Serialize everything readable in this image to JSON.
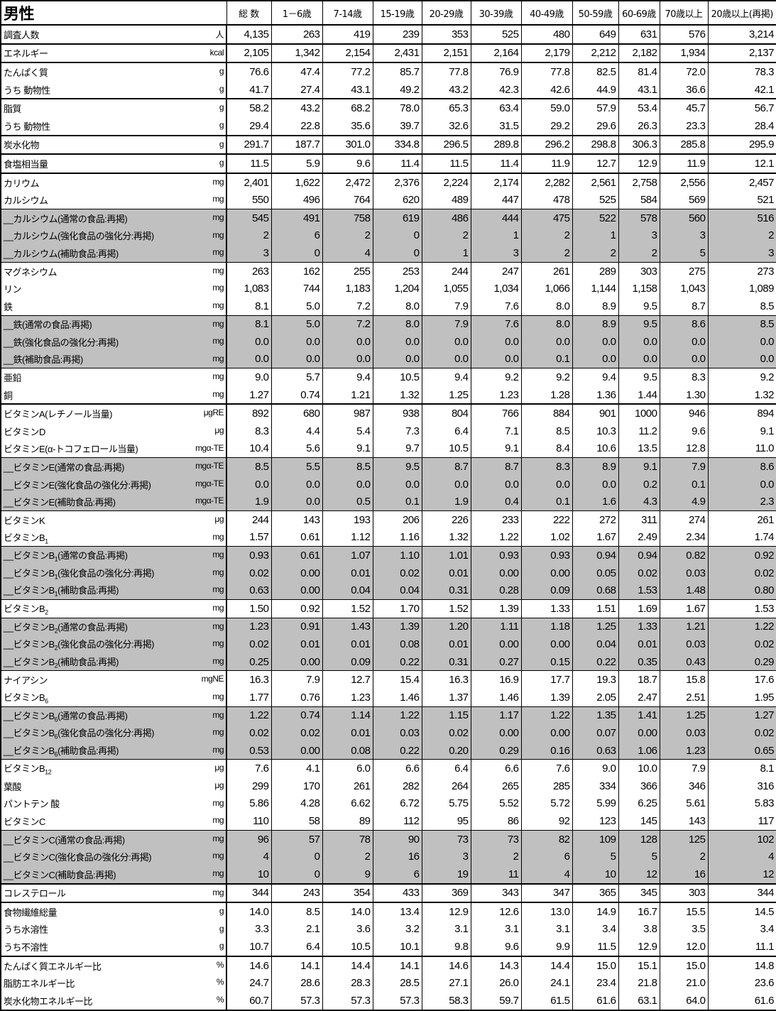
{
  "title": "男性",
  "columns": [
    "総 数",
    "1－6歳",
    "7-14歳",
    "15-19歳",
    "20-29歳",
    "30-39歳",
    "40-49歳",
    "50-59歳",
    "60-69歳",
    "70歳以上",
    "20歳以上(再掲)"
  ],
  "colors": {
    "highlight_row": "#c0c0c0"
  },
  "rows": [
    {
      "label": "調査人数",
      "unit": "人",
      "v": [
        "4,135",
        "263",
        "419",
        "239",
        "353",
        "525",
        "480",
        "649",
        "631",
        "576",
        "3,214"
      ]
    },
    {
      "label": "エネルギー",
      "unit": "kcal",
      "v": [
        "2,105",
        "1,342",
        "2,154",
        "2,431",
        "2,151",
        "2,164",
        "2,179",
        "2,212",
        "2,182",
        "1,934",
        "2,137"
      ]
    },
    {
      "label": "たんぱく質",
      "unit": "g",
      "v": [
        "76.6",
        "47.4",
        "77.2",
        "85.7",
        "77.8",
        "76.9",
        "77.8",
        "82.5",
        "81.4",
        "72.0",
        "78.3"
      ]
    },
    {
      "label": " うち 動物性",
      "unit": "g",
      "v": [
        "41.7",
        "27.4",
        "43.1",
        "49.2",
        "43.2",
        "42.3",
        "42.6",
        "44.9",
        "43.1",
        "36.6",
        "42.1"
      ]
    },
    {
      "label": "脂質",
      "unit": "g",
      "v": [
        "58.2",
        "43.2",
        "68.2",
        "78.0",
        "65.3",
        "63.4",
        "59.0",
        "57.9",
        "53.4",
        "45.7",
        "56.7"
      ]
    },
    {
      "label": " うち 動物性",
      "unit": "g",
      "v": [
        "29.4",
        "22.8",
        "35.6",
        "39.7",
        "32.6",
        "31.5",
        "29.2",
        "29.6",
        "26.3",
        "23.3",
        "28.4"
      ]
    },
    {
      "label": "炭水化物",
      "unit": "g",
      "v": [
        "291.7",
        "187.7",
        "301.0",
        "334.8",
        "296.5",
        "289.8",
        "296.2",
        "298.8",
        "306.3",
        "285.8",
        "295.9"
      ]
    },
    {
      "label": "食塩相当量",
      "unit": "g",
      "v": [
        "11.5",
        "5.9",
        "9.6",
        "11.4",
        "11.5",
        "11.4",
        "11.9",
        "12.7",
        "12.9",
        "11.9",
        "12.1"
      ]
    },
    {
      "label": "カリウム",
      "unit": "mg",
      "v": [
        "2,401",
        "1,622",
        "2,472",
        "2,376",
        "2,224",
        "2,174",
        "2,282",
        "2,561",
        "2,758",
        "2,556",
        "2,457"
      ]
    },
    {
      "label": "カルシウム",
      "unit": "mg",
      "v": [
        "550",
        "496",
        "764",
        "620",
        "489",
        "447",
        "478",
        "525",
        "584",
        "569",
        "521"
      ]
    },
    {
      "label": "__カルシウム(通常の食品:再掲)",
      "unit": "mg",
      "gray": true,
      "v": [
        "545",
        "491",
        "758",
        "619",
        "486",
        "444",
        "475",
        "522",
        "578",
        "560",
        "516"
      ]
    },
    {
      "label": "__カルシウム(強化食品の強化分:再掲)",
      "unit": "mg",
      "gray": true,
      "v": [
        "2",
        "6",
        "2",
        "0",
        "2",
        "1",
        "2",
        "1",
        "3",
        "3",
        "2"
      ]
    },
    {
      "label": "__カルシウム(補助食品:再掲)",
      "unit": "mg",
      "gray": true,
      "v": [
        "3",
        "0",
        "4",
        "0",
        "1",
        "3",
        "2",
        "2",
        "2",
        "5",
        "3"
      ]
    },
    {
      "label": "マグネシウム",
      "unit": "mg",
      "v": [
        "263",
        "162",
        "255",
        "253",
        "244",
        "247",
        "261",
        "289",
        "303",
        "275",
        "273"
      ]
    },
    {
      "label": "リン",
      "unit": "mg",
      "v": [
        "1,083",
        "744",
        "1,183",
        "1,204",
        "1,055",
        "1,034",
        "1,066",
        "1,144",
        "1,158",
        "1,043",
        "1,089"
      ]
    },
    {
      "label": "鉄",
      "unit": "mg",
      "v": [
        "8.1",
        "5.0",
        "7.2",
        "8.0",
        "7.9",
        "7.6",
        "8.0",
        "8.9",
        "9.5",
        "8.7",
        "8.5"
      ]
    },
    {
      "label": "__鉄(通常の食品:再掲)",
      "unit": "mg",
      "gray": true,
      "v": [
        "8.1",
        "5.0",
        "7.2",
        "8.0",
        "7.9",
        "7.6",
        "8.0",
        "8.9",
        "9.5",
        "8.6",
        "8.5"
      ]
    },
    {
      "label": "__鉄(強化食品の強化分:再掲)",
      "unit": "mg",
      "gray": true,
      "v": [
        "0.0",
        "0.0",
        "0.0",
        "0.0",
        "0.0",
        "0.0",
        "0.0",
        "0.0",
        "0.0",
        "0.0",
        "0.0"
      ]
    },
    {
      "label": "__鉄(補助食品:再掲)",
      "unit": "mg",
      "gray": true,
      "v": [
        "0.0",
        "0.0",
        "0.0",
        "0.0",
        "0.0",
        "0.0",
        "0.1",
        "0.0",
        "0.0",
        "0.0",
        "0.0"
      ]
    },
    {
      "label": "亜鉛",
      "unit": "mg",
      "v": [
        "9.0",
        "5.7",
        "9.4",
        "10.5",
        "9.4",
        "9.2",
        "9.2",
        "9.4",
        "9.5",
        "8.3",
        "9.2"
      ]
    },
    {
      "label": "銅",
      "unit": "mg",
      "v": [
        "1.27",
        "0.74",
        "1.21",
        "1.32",
        "1.25",
        "1.23",
        "1.28",
        "1.36",
        "1.44",
        "1.30",
        "1.32"
      ]
    },
    {
      "label": "ビタミンA(レチノール当量)",
      "unit": "μgRE",
      "v": [
        "892",
        "680",
        "987",
        "938",
        "804",
        "766",
        "884",
        "901",
        "1000",
        "946",
        "894"
      ]
    },
    {
      "label": "ビタミンD",
      "unit": "μg",
      "v": [
        "8.3",
        "4.4",
        "5.4",
        "7.3",
        "6.4",
        "7.1",
        "8.5",
        "10.3",
        "11.2",
        "9.6",
        "9.1"
      ]
    },
    {
      "label": "ビタミンE(α-トコフェロール当量)",
      "unit": "mgα-TE",
      "v": [
        "10.4",
        "5.6",
        "9.1",
        "9.7",
        "10.5",
        "9.1",
        "8.4",
        "10.6",
        "13.5",
        "12.8",
        "11.0"
      ]
    },
    {
      "label": "__ビタミンE(通常の食品:再掲)",
      "unit": "mgα-TE",
      "gray": true,
      "v": [
        "8.5",
        "5.5",
        "8.5",
        "9.5",
        "8.7",
        "8.7",
        "8.3",
        "8.9",
        "9.1",
        "7.9",
        "8.6"
      ]
    },
    {
      "label": "__ビタミンE(強化食品の強化分:再掲)",
      "unit": "mgα-TE",
      "gray": true,
      "v": [
        "0.0",
        "0.0",
        "0.0",
        "0.0",
        "0.0",
        "0.0",
        "0.0",
        "0.0",
        "0.2",
        "0.1",
        "0.0"
      ]
    },
    {
      "label": "__ビタミンE(補助食品:再掲)",
      "unit": "mgα-TE",
      "gray": true,
      "v": [
        "1.9",
        "0.0",
        "0.5",
        "0.1",
        "1.9",
        "0.4",
        "0.1",
        "1.6",
        "4.3",
        "4.9",
        "2.3"
      ]
    },
    {
      "label": "ビタミンK",
      "unit": "μg",
      "v": [
        "244",
        "143",
        "193",
        "206",
        "226",
        "233",
        "222",
        "272",
        "311",
        "274",
        "261"
      ]
    },
    {
      "label": "ビタミンB",
      "sub": "1",
      "unit": "mg",
      "v": [
        "1.57",
        "0.61",
        "1.12",
        "1.16",
        "1.32",
        "1.22",
        "1.02",
        "1.67",
        "2.49",
        "2.34",
        "1.74"
      ]
    },
    {
      "label": "__ビタミンB",
      "sub": "1",
      "post": "(通常の食品:再掲)",
      "unit": "mg",
      "gray": true,
      "v": [
        "0.93",
        "0.61",
        "1.07",
        "1.10",
        "1.01",
        "0.93",
        "0.93",
        "0.94",
        "0.94",
        "0.82",
        "0.92"
      ]
    },
    {
      "label": "__ビタミンB",
      "sub": "1",
      "post": "(強化食品の強化分:再掲)",
      "unit": "mg",
      "gray": true,
      "v": [
        "0.02",
        "0.00",
        "0.01",
        "0.02",
        "0.01",
        "0.00",
        "0.00",
        "0.05",
        "0.02",
        "0.03",
        "0.02"
      ]
    },
    {
      "label": "__ビタミンB",
      "sub": "1",
      "post": "(補助食品:再掲)",
      "unit": "mg",
      "gray": true,
      "v": [
        "0.63",
        "0.00",
        "0.04",
        "0.04",
        "0.31",
        "0.28",
        "0.09",
        "0.68",
        "1.53",
        "1.48",
        "0.80"
      ]
    },
    {
      "label": "ビタミンB",
      "sub": "2",
      "unit": "mg",
      "v": [
        "1.50",
        "0.92",
        "1.52",
        "1.70",
        "1.52",
        "1.39",
        "1.33",
        "1.51",
        "1.69",
        "1.67",
        "1.53"
      ]
    },
    {
      "label": "__ビタミンB",
      "sub": "2",
      "post": "(通常の食品:再掲)",
      "unit": "mg",
      "gray": true,
      "v": [
        "1.23",
        "0.91",
        "1.43",
        "1.39",
        "1.20",
        "1.11",
        "1.18",
        "1.25",
        "1.33",
        "1.21",
        "1.22"
      ]
    },
    {
      "label": "__ビタミンB",
      "sub": "2",
      "post": "(強化食品の強化分:再掲)",
      "unit": "mg",
      "gray": true,
      "v": [
        "0.02",
        "0.01",
        "0.01",
        "0.08",
        "0.01",
        "0.00",
        "0.00",
        "0.04",
        "0.01",
        "0.03",
        "0.02"
      ]
    },
    {
      "label": "__ビタミンB",
      "sub": "2",
      "post": "(補助食品:再掲)",
      "unit": "mg",
      "gray": true,
      "v": [
        "0.25",
        "0.00",
        "0.09",
        "0.22",
        "0.31",
        "0.27",
        "0.15",
        "0.22",
        "0.35",
        "0.43",
        "0.29"
      ]
    },
    {
      "label": "ナイアシン",
      "unit": "mgNE",
      "v": [
        "16.3",
        "7.9",
        "12.7",
        "15.4",
        "16.3",
        "16.9",
        "17.7",
        "19.3",
        "18.7",
        "15.8",
        "17.6"
      ]
    },
    {
      "label": "ビタミンB",
      "sub": "6",
      "unit": "mg",
      "v": [
        "1.77",
        "0.76",
        "1.23",
        "1.46",
        "1.37",
        "1.46",
        "1.39",
        "2.05",
        "2.47",
        "2.51",
        "1.95"
      ]
    },
    {
      "label": "__ビタミンB",
      "sub": "6",
      "post": "(通常の食品:再掲)",
      "unit": "mg",
      "gray": true,
      "v": [
        "1.22",
        "0.74",
        "1.14",
        "1.22",
        "1.15",
        "1.17",
        "1.22",
        "1.35",
        "1.41",
        "1.25",
        "1.27"
      ]
    },
    {
      "label": "__ビタミンB",
      "sub": "6",
      "post": "(強化食品の強化分:再掲)",
      "unit": "mg",
      "gray": true,
      "v": [
        "0.02",
        "0.02",
        "0.01",
        "0.03",
        "0.02",
        "0.00",
        "0.00",
        "0.07",
        "0.00",
        "0.03",
        "0.02"
      ]
    },
    {
      "label": "__ビタミンB",
      "sub": "6",
      "post": "(補助食品:再掲)",
      "unit": "mg",
      "gray": true,
      "v": [
        "0.53",
        "0.00",
        "0.08",
        "0.22",
        "0.20",
        "0.29",
        "0.16",
        "0.63",
        "1.06",
        "1.23",
        "0.65"
      ]
    },
    {
      "label": "ビタミンB",
      "sub": "12",
      "unit": "μg",
      "v": [
        "7.6",
        "4.1",
        "6.0",
        "6.6",
        "6.4",
        "6.6",
        "7.6",
        "9.0",
        "10.0",
        "7.9",
        "8.1"
      ]
    },
    {
      "label": "葉酸",
      "unit": "μg",
      "v": [
        "299",
        "170",
        "261",
        "282",
        "264",
        "265",
        "285",
        "334",
        "366",
        "346",
        "316"
      ]
    },
    {
      "label": "パントテン 酸",
      "unit": "mg",
      "v": [
        "5.86",
        "4.28",
        "6.62",
        "6.72",
        "5.75",
        "5.52",
        "5.72",
        "5.99",
        "6.25",
        "5.61",
        "5.83"
      ]
    },
    {
      "label": "ビタミンC",
      "unit": "mg",
      "v": [
        "110",
        "58",
        "89",
        "112",
        "95",
        "86",
        "92",
        "123",
        "145",
        "143",
        "117"
      ]
    },
    {
      "label": "__ビタミンC(通常の食品:再掲)",
      "unit": "mg",
      "gray": true,
      "v": [
        "96",
        "57",
        "78",
        "90",
        "73",
        "73",
        "82",
        "109",
        "128",
        "125",
        "102"
      ]
    },
    {
      "label": "__ビタミンC(強化食品の強化分:再掲)",
      "unit": "mg",
      "gray": true,
      "v": [
        "4",
        "0",
        "2",
        "16",
        "3",
        "2",
        "6",
        "5",
        "5",
        "2",
        "4"
      ]
    },
    {
      "label": "__ビタミンC(補助食品:再掲)",
      "unit": "mg",
      "gray": true,
      "v": [
        "10",
        "0",
        "9",
        "6",
        "19",
        "11",
        "4",
        "10",
        "12",
        "16",
        "12"
      ]
    },
    {
      "label": "コレステロール",
      "unit": "mg",
      "v": [
        "344",
        "243",
        "354",
        "433",
        "369",
        "343",
        "347",
        "365",
        "345",
        "303",
        "344"
      ]
    },
    {
      "label": "食物繊維総量",
      "unit": "g",
      "v": [
        "14.0",
        "8.5",
        "14.0",
        "13.4",
        "12.9",
        "12.6",
        "13.0",
        "14.9",
        "16.7",
        "15.5",
        "14.5"
      ]
    },
    {
      "label": "  うち水溶性",
      "unit": "g",
      "v": [
        "3.3",
        "2.1",
        "3.6",
        "3.2",
        "3.1",
        "3.1",
        "3.1",
        "3.4",
        "3.8",
        "3.5",
        "3.4"
      ]
    },
    {
      "label": "  うち不溶性",
      "unit": "g",
      "v": [
        "10.7",
        "6.4",
        "10.5",
        "10.1",
        "9.8",
        "9.6",
        "9.9",
        "11.5",
        "12.9",
        "12.0",
        "11.1"
      ]
    },
    {
      "label": "たんぱく質エネルギー比",
      "unit": "%",
      "v": [
        "14.6",
        "14.1",
        "14.4",
        "14.1",
        "14.6",
        "14.3",
        "14.4",
        "15.0",
        "15.1",
        "15.0",
        "14.8"
      ]
    },
    {
      "label": "脂肪エネルギー比",
      "unit": "%",
      "v": [
        "24.7",
        "28.6",
        "28.3",
        "28.5",
        "27.1",
        "26.0",
        "24.1",
        "23.4",
        "21.8",
        "21.0",
        "23.6"
      ]
    },
    {
      "label": "炭水化物エネルギー比",
      "unit": "%",
      "v": [
        "60.7",
        "57.3",
        "57.3",
        "57.3",
        "58.3",
        "59.7",
        "61.5",
        "61.6",
        "63.1",
        "64.0",
        "61.6"
      ]
    }
  ]
}
